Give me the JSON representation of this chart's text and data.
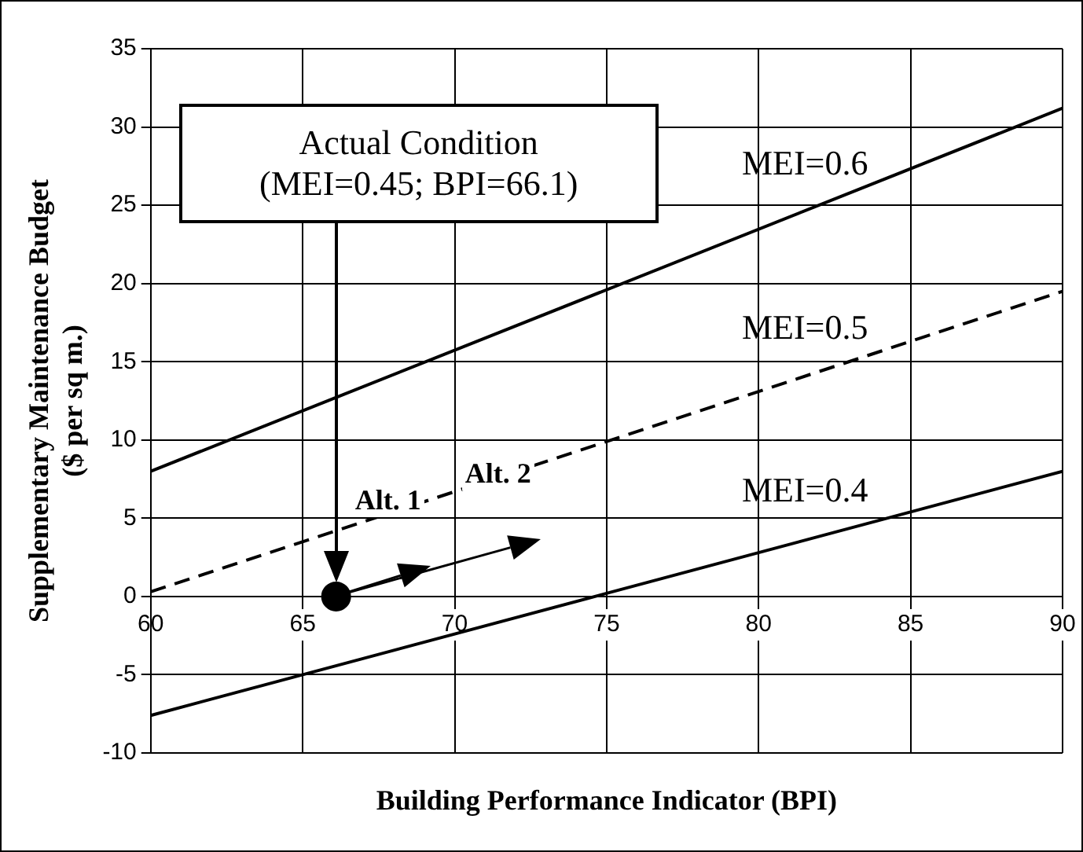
{
  "chart_data": {
    "type": "line",
    "xlabel": "Building Performance Indicator (BPI)",
    "ylabel": "Supplementary Maintenance Budget\n($ per sq m.)",
    "xlim": [
      60,
      90
    ],
    "xticks": [
      60,
      65,
      70,
      75,
      80,
      85,
      90
    ],
    "ylim": [
      -10,
      35
    ],
    "yticks": [
      -10,
      -5,
      0,
      5,
      10,
      15,
      20,
      25,
      30,
      35
    ],
    "grid": true,
    "legend": false,
    "series": [
      {
        "name": "MEI=0.6",
        "color": "#000000",
        "x": [
          60,
          90
        ],
        "values": [
          8,
          31.2
        ],
        "line_style": "solid",
        "marker": "none"
      },
      {
        "name": "MEI=0.5",
        "color": "#000000",
        "x": [
          60,
          90
        ],
        "values": [
          0.3,
          19.5
        ],
        "line_style": "dashed",
        "marker": "none"
      },
      {
        "name": "MEI=0.4",
        "color": "#000000",
        "x": [
          60,
          90
        ],
        "values": [
          -7.6,
          8
        ],
        "line_style": "solid",
        "marker": "none"
      },
      {
        "type": "scatter",
        "color": "#000000",
        "x": [
          66.1
        ],
        "values": [
          0
        ],
        "marker": "circle"
      }
    ],
    "annotations": [
      "Actual Condition\n(MEI=0.45; BPI=66.1)",
      "Alt. 1",
      "Alt. 2"
    ]
  }
}
